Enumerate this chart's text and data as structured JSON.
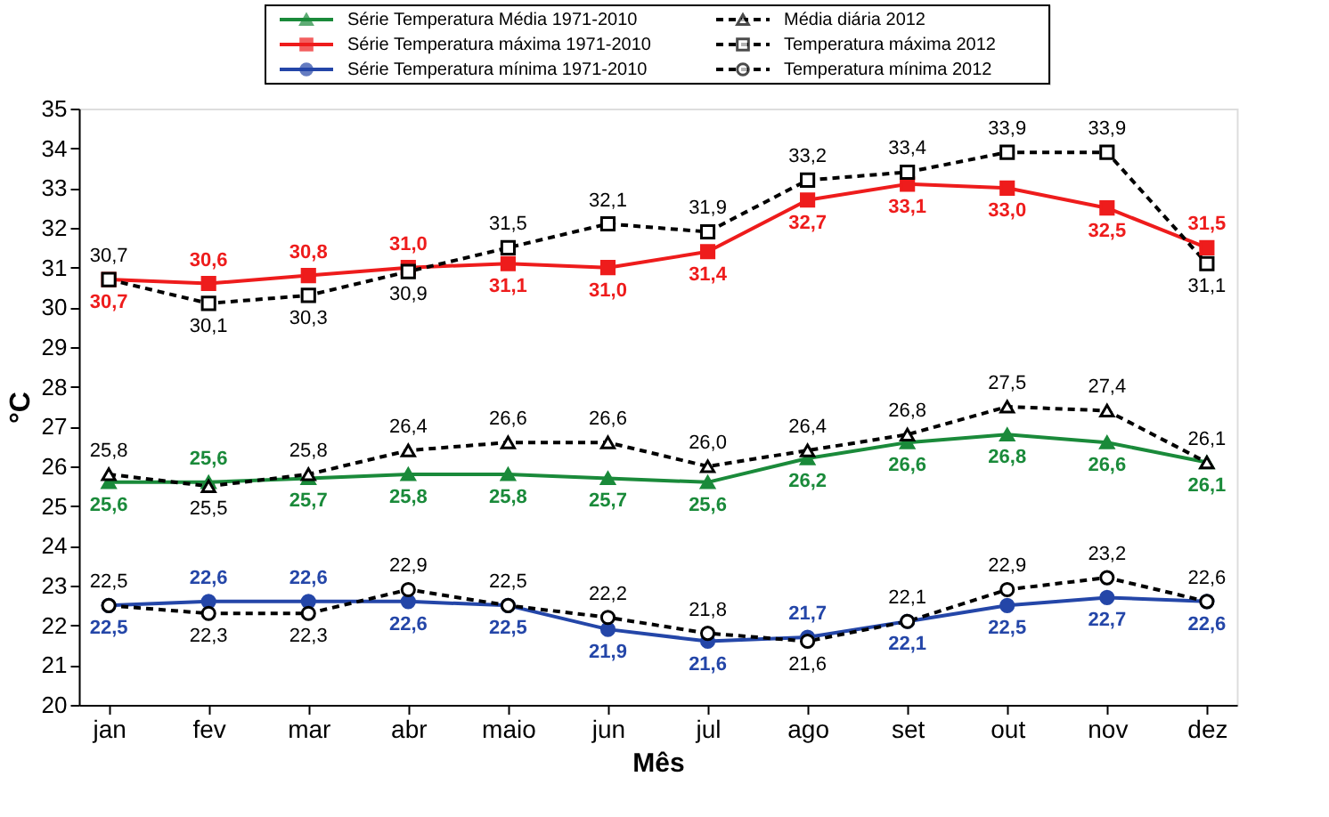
{
  "chart_data": {
    "type": "line",
    "xlabel": "Mês",
    "ylabel": "°C",
    "categories": [
      "jan",
      "fev",
      "mar",
      "abr",
      "maio",
      "jun",
      "jul",
      "ago",
      "set",
      "out",
      "nov",
      "dez"
    ],
    "ylim": [
      20,
      35
    ],
    "yticks": [
      20,
      21,
      22,
      23,
      24,
      25,
      26,
      27,
      28,
      29,
      30,
      31,
      32,
      33,
      34,
      35
    ],
    "grid": false,
    "legend": "top",
    "series": [
      {
        "name": "Série Temperatura Média 1971-2010",
        "color": "#1a8a3a",
        "marker": "triangle",
        "line_style": "solid",
        "values": [
          25.6,
          25.6,
          25.7,
          25.8,
          25.8,
          25.7,
          25.6,
          26.2,
          26.6,
          26.8,
          26.6,
          26.1
        ],
        "value_labels": [
          "25,6",
          "25,6",
          "25,7",
          "25,8",
          "25,8",
          "25,7",
          "25,6",
          "26,2",
          "26,6",
          "26,8",
          "26,6",
          "26,1"
        ]
      },
      {
        "name": "Média diária 2012",
        "color": "#000000",
        "marker": "triangle",
        "line_style": "dashed",
        "values": [
          25.8,
          25.5,
          25.8,
          26.4,
          26.6,
          26.6,
          26.0,
          26.4,
          26.8,
          27.5,
          27.4,
          26.1
        ],
        "value_labels": [
          "25,8",
          "25,5",
          "25,8",
          "26,4",
          "26,6",
          "26,6",
          "26,0",
          "26,4",
          "26,8",
          "27,5",
          "27,4",
          "26,1"
        ]
      },
      {
        "name": "Série Temperatura  máxima 1971-2010",
        "color": "#ee1c1c",
        "marker": "square",
        "line_style": "solid",
        "values": [
          30.7,
          30.6,
          30.8,
          31.0,
          31.1,
          31.0,
          31.4,
          32.7,
          33.1,
          33.0,
          32.5,
          31.5
        ],
        "value_labels": [
          "30,7",
          "30,6",
          "30,8",
          "31,0",
          "31,1",
          "31,0",
          "31,4",
          "32,7",
          "33,1",
          "33,0",
          "32,5",
          "31,5"
        ]
      },
      {
        "name": "Temperatura máxima 2012",
        "color": "#000000",
        "marker": "square",
        "line_style": "dashed",
        "values": [
          30.7,
          30.1,
          30.3,
          30.9,
          31.5,
          32.1,
          31.9,
          33.2,
          33.4,
          33.9,
          33.9,
          31.1
        ],
        "value_labels": [
          "30,7",
          "30,1",
          "30,3",
          "30,9",
          "31,5",
          "32,1",
          "31,9",
          "33,2",
          "33,4",
          "33,9",
          "33,9",
          "31,1"
        ]
      },
      {
        "name": "Série Temperatura mínima 1971-2010",
        "color": "#2446a8",
        "marker": "circle",
        "line_style": "solid",
        "values": [
          22.5,
          22.6,
          22.6,
          22.6,
          22.5,
          21.9,
          21.6,
          21.7,
          22.1,
          22.5,
          22.7,
          22.6
        ],
        "value_labels": [
          "22,5",
          "22,6",
          "22,6",
          "22,6",
          "22,5",
          "21,9",
          "21,6",
          "21,7",
          "22,1",
          "22,5",
          "22,7",
          "22,6"
        ]
      },
      {
        "name": "Temperatura mínima 2012",
        "color": "#000000",
        "marker": "circle",
        "line_style": "dashed",
        "values": [
          22.5,
          22.3,
          22.3,
          22.9,
          22.5,
          22.2,
          21.8,
          21.6,
          22.1,
          22.9,
          23.2,
          22.6
        ],
        "value_labels": [
          "22,5",
          "22,3",
          "22,3",
          "22,9",
          "22,5",
          "22,2",
          "21,8",
          "21,6",
          "22,1",
          "22,9",
          "23,2",
          "22,6"
        ]
      }
    ]
  }
}
